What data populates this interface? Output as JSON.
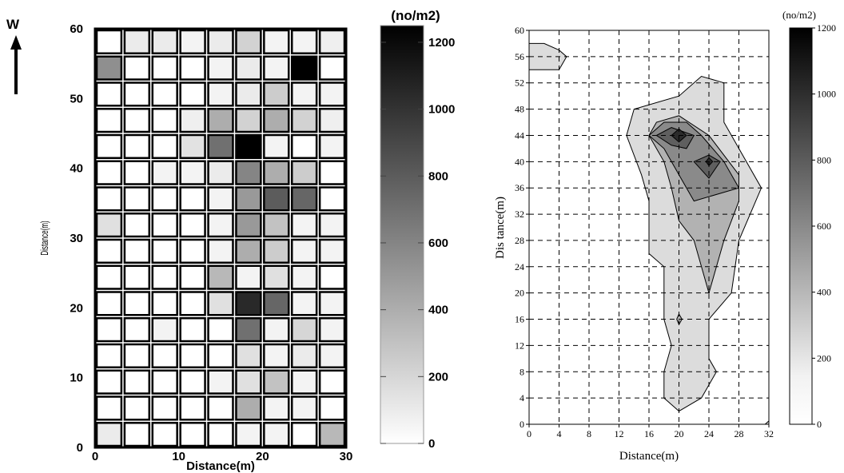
{
  "north_label": "W",
  "chart_data": [
    {
      "type": "heatmap",
      "xlabel": "Distance(m)",
      "ylabel": "Distance(m)",
      "xlim": [
        0,
        30
      ],
      "ylim": [
        0,
        60
      ],
      "x_ticks": [
        0,
        10,
        20,
        30
      ],
      "y_ticks": [
        0,
        10,
        20,
        30,
        40,
        50,
        60
      ],
      "colorbar": {
        "title": "(no/m2)",
        "range": [
          0,
          1250
        ],
        "ticks": [
          0,
          200,
          400,
          600,
          800,
          1000,
          1200
        ]
      },
      "cell_size": [
        3.33,
        3.75
      ],
      "rows_top_to_bottom": [
        [
          0,
          100,
          100,
          60,
          100,
          220,
          60,
          60,
          80
        ],
        [
          550,
          0,
          0,
          0,
          60,
          100,
          60,
          1250,
          0
        ],
        [
          0,
          0,
          0,
          0,
          60,
          100,
          250,
          60,
          60
        ],
        [
          0,
          0,
          0,
          80,
          400,
          220,
          400,
          220,
          80
        ],
        [
          0,
          0,
          0,
          140,
          700,
          1250,
          60,
          0,
          60
        ],
        [
          0,
          0,
          60,
          60,
          100,
          600,
          400,
          250,
          0
        ],
        [
          0,
          0,
          0,
          0,
          60,
          500,
          800,
          750,
          0
        ],
        [
          150,
          0,
          0,
          0,
          60,
          500,
          300,
          60,
          60
        ],
        [
          0,
          0,
          0,
          0,
          60,
          400,
          250,
          60,
          60
        ],
        [
          0,
          0,
          0,
          0,
          350,
          60,
          150,
          60,
          0
        ],
        [
          0,
          0,
          0,
          0,
          150,
          1050,
          750,
          60,
          60
        ],
        [
          0,
          0,
          60,
          0,
          0,
          700,
          60,
          200,
          60
        ],
        [
          0,
          0,
          0,
          0,
          0,
          150,
          60,
          100,
          60
        ],
        [
          0,
          0,
          0,
          0,
          60,
          150,
          300,
          60,
          0
        ],
        [
          0,
          0,
          0,
          0,
          0,
          400,
          60,
          60,
          0
        ],
        [
          100,
          0,
          0,
          0,
          0,
          60,
          60,
          0,
          350
        ]
      ]
    },
    {
      "type": "contour",
      "xlabel": "Distance(m)",
      "ylabel": "Dis tance(m)",
      "xlim": [
        0,
        32
      ],
      "ylim": [
        0,
        60
      ],
      "x_ticks": [
        0,
        4,
        8,
        12,
        16,
        20,
        24,
        28,
        32
      ],
      "y_ticks": [
        0,
        4,
        8,
        12,
        16,
        20,
        24,
        28,
        32,
        36,
        40,
        44,
        48,
        52,
        56,
        60
      ],
      "grid": true,
      "colorbar": {
        "title": "(no/m2)",
        "range": [
          0,
          1200
        ],
        "ticks": [
          0,
          200,
          400,
          600,
          800,
          1000,
          1200
        ]
      },
      "levels": [
        {
          "value": 200,
          "fill": "#dcdcdc",
          "polygons": [
            [
              [
                20,
                2
              ],
              [
                18,
                4
              ],
              [
                18,
                8
              ],
              [
                19,
                12
              ],
              [
                18,
                16
              ],
              [
                18,
                24
              ],
              [
                16,
                26
              ],
              [
                16,
                34
              ],
              [
                15,
                38
              ],
              [
                13,
                44
              ],
              [
                14,
                48
              ],
              [
                20,
                50
              ],
              [
                23,
                53
              ],
              [
                26,
                52
              ],
              [
                26,
                46
              ],
              [
                28,
                42
              ],
              [
                31,
                36
              ],
              [
                28,
                28
              ],
              [
                27,
                20
              ],
              [
                24,
                16
              ],
              [
                24,
                10
              ],
              [
                25,
                8
              ],
              [
                23,
                4
              ]
            ],
            [
              [
                0,
                58
              ],
              [
                2,
                58
              ],
              [
                4,
                57
              ],
              [
                5,
                56
              ],
              [
                4,
                54
              ],
              [
                2,
                54
              ],
              [
                0,
                54
              ]
            ],
            [
              [
                31.5,
                0
              ],
              [
                32,
                0.5
              ],
              [
                32,
                0
              ]
            ]
          ]
        },
        {
          "value": 400,
          "fill": "#b2b2b2",
          "polygons": [
            [
              [
                24,
                20
              ],
              [
                22,
                28
              ],
              [
                20,
                31
              ],
              [
                19,
                36
              ],
              [
                18,
                40
              ],
              [
                16,
                44
              ],
              [
                17,
                46
              ],
              [
                20,
                47
              ],
              [
                24,
                44
              ],
              [
                28,
                38
              ],
              [
                28,
                34
              ],
              [
                26,
                28
              ]
            ],
            [
              [
                19.7,
                16
              ],
              [
                20,
                16.8
              ],
              [
                20.4,
                16
              ],
              [
                20,
                15.2
              ]
            ]
          ]
        },
        {
          "value": 600,
          "fill": "#8a8a8a",
          "polygons": [
            [
              [
                22,
                34
              ],
              [
                20,
                38
              ],
              [
                18,
                42
              ],
              [
                16,
                44
              ],
              [
                18,
                46
              ],
              [
                21,
                46
              ],
              [
                23,
                44
              ],
              [
                26,
                40
              ],
              [
                28,
                36
              ]
            ]
          ]
        },
        {
          "value": 800,
          "fill": "#5f5f5f",
          "polygons": [
            [
              [
                17,
                44
              ],
              [
                19,
                45.2
              ],
              [
                22,
                44
              ],
              [
                21,
                42
              ],
              [
                19,
                42.5
              ]
            ],
            [
              [
                22,
                40
              ],
              [
                24,
                41
              ],
              [
                25.5,
                40
              ],
              [
                24,
                37.5
              ]
            ]
          ]
        },
        {
          "value": 1000,
          "fill": "#2b2b2b",
          "polygons": [
            [
              [
                19,
                44
              ],
              [
                20,
                45
              ],
              [
                21,
                44
              ],
              [
                20,
                43
              ]
            ],
            [
              [
                23.6,
                40
              ],
              [
                24,
                40.6
              ],
              [
                24.5,
                40
              ],
              [
                24,
                39.4
              ]
            ]
          ]
        }
      ]
    }
  ]
}
